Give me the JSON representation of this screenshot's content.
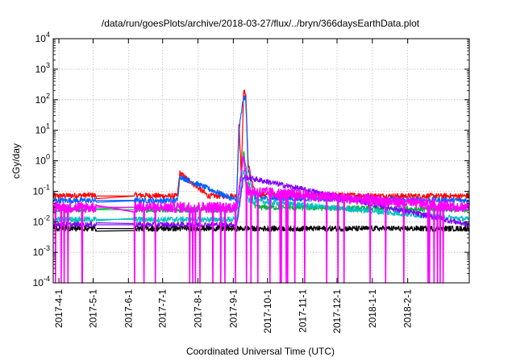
{
  "chart_data": {
    "type": "line",
    "title": "/data/run/goesPlots/archive/2018-03-27/flux/../bryn/366daysEarthData.plot",
    "xlabel": "Coordinated Universal Time (UTC)",
    "ylabel": "cGy/day",
    "yscale": "log",
    "ylim": [
      0.0001,
      10000
    ],
    "xlim": [
      "2017-03-27",
      "2018-03-27"
    ],
    "grid": true,
    "legend": "none",
    "y_ticks": [
      {
        "base": "10",
        "exp": "-4",
        "value": 0.0001
      },
      {
        "base": "10",
        "exp": "-3",
        "value": 0.001
      },
      {
        "base": "10",
        "exp": "-2",
        "value": 0.01
      },
      {
        "base": "10",
        "exp": "-1",
        "value": 0.1
      },
      {
        "base": "10",
        "exp": "0",
        "value": 1
      },
      {
        "base": "10",
        "exp": "1",
        "value": 10
      },
      {
        "base": "10",
        "exp": "2",
        "value": 100
      },
      {
        "base": "10",
        "exp": "3",
        "value": 1000
      },
      {
        "base": "10",
        "exp": "4",
        "value": 10000
      }
    ],
    "x_ticks": [
      {
        "label": "2017-4-1",
        "date": "2017-04-01"
      },
      {
        "label": "2017-5-1",
        "date": "2017-05-01"
      },
      {
        "label": "2017-6-1",
        "date": "2017-06-01"
      },
      {
        "label": "2017-7-1",
        "date": "2017-07-01"
      },
      {
        "label": "2017-8-1",
        "date": "2017-08-01"
      },
      {
        "label": "2017-9-1",
        "date": "2017-09-01"
      },
      {
        "label": "2017-10-1",
        "date": "2017-10-01"
      },
      {
        "label": "2017-11-1",
        "date": "2017-11-01"
      },
      {
        "label": "2017-12-1",
        "date": "2017-12-01"
      },
      {
        "label": "2018-1-1",
        "date": "2018-01-01"
      },
      {
        "label": "2018-2-1",
        "date": "2018-02-01"
      }
    ],
    "data_gap": [
      "2017-05-04",
      "2017-06-06"
    ],
    "series": [
      {
        "color": "#ff0000",
        "x": [
          "2017-03-27",
          "2017-05-01",
          "2017-05-04",
          "2017-06-06",
          "2017-07-01",
          "2017-07-14",
          "2017-07-16",
          "2017-08-10",
          "2017-09-04",
          "2017-09-06",
          "2017-09-08",
          "2017-09-10",
          "2017-09-12",
          "2017-09-14",
          "2017-09-20",
          "2017-10-15",
          "2017-12-01",
          "2018-01-15",
          "2018-03-27"
        ],
        "values": [
          0.07,
          0.075,
          0.07,
          0.075,
          0.07,
          0.07,
          0.4,
          0.07,
          0.07,
          20,
          0.3,
          180,
          160,
          0.8,
          0.08,
          0.075,
          0.075,
          0.07,
          0.07
        ]
      },
      {
        "color": "#0060ff",
        "x": [
          "2017-03-27",
          "2017-05-04",
          "2017-06-06",
          "2017-07-14",
          "2017-07-16",
          "2017-09-04",
          "2017-09-06",
          "2017-09-10",
          "2017-09-12",
          "2017-09-14",
          "2017-09-20",
          "2018-03-27"
        ],
        "values": [
          0.05,
          0.05,
          0.05,
          0.05,
          0.3,
          0.05,
          10,
          120,
          100,
          0.5,
          0.06,
          0.05
        ]
      },
      {
        "color": "#00b040",
        "x": [
          "2017-03-27",
          "2017-05-04",
          "2017-06-06",
          "2017-09-04",
          "2017-09-10",
          "2017-09-14",
          "2017-09-20",
          "2018-03-27"
        ],
        "values": [
          0.025,
          0.025,
          0.025,
          0.025,
          2,
          0.2,
          0.03,
          0.025
        ]
      },
      {
        "color": "#00c0c0",
        "x": [
          "2017-03-27",
          "2017-05-04",
          "2017-06-06",
          "2017-09-04",
          "2017-09-10",
          "2017-09-14",
          "2018-03-27"
        ],
        "values": [
          0.012,
          0.012,
          0.012,
          0.012,
          0.5,
          0.05,
          0.012
        ]
      },
      {
        "color": "#8000ff",
        "x": [
          "2017-03-27",
          "2017-05-04",
          "2017-06-06",
          "2017-09-04",
          "2017-09-10",
          "2018-03-27"
        ],
        "values": [
          0.008,
          0.008,
          0.008,
          0.008,
          0.3,
          0.008
        ]
      },
      {
        "color": "#000000",
        "x": [
          "2017-03-27",
          "2017-05-04",
          "2017-06-06",
          "2018-03-27"
        ],
        "values": [
          0.006,
          0.006,
          0.006,
          0.006
        ]
      },
      {
        "color": "#ff00ff",
        "x": [
          "2017-03-27",
          "2017-05-04",
          "2017-06-06",
          "2017-09-04",
          "2017-09-10",
          "2017-09-14",
          "2018-03-27"
        ],
        "values": [
          0.03,
          0.03,
          0.03,
          0.03,
          1.5,
          0.1,
          0.03
        ]
      }
    ]
  }
}
